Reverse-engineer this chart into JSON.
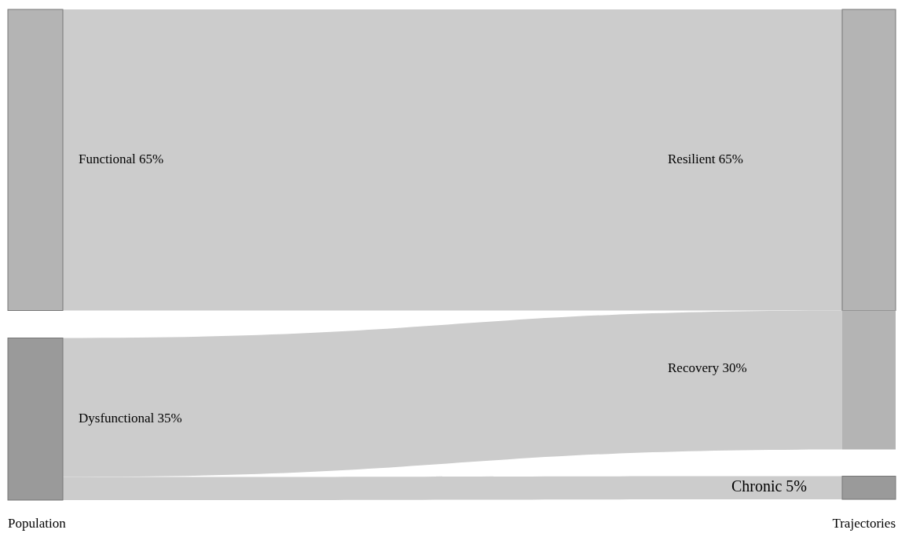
{
  "chart_data": {
    "type": "other",
    "categories": [
      "Functional",
      "Dysfunctional",
      "Resilient",
      "Recovery",
      "Chronic"
    ],
    "values": [
      65,
      35,
      65,
      30,
      5
    ],
    "value_labels": [
      "65%",
      "35%",
      "65%",
      "30%",
      "5%"
    ],
    "annotations": [
      "Population",
      "Trajectories"
    ]
  }
}
